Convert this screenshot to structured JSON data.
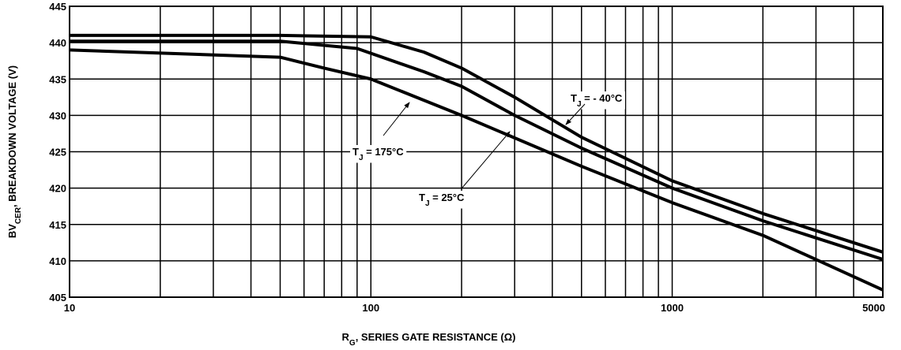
{
  "chart_data": {
    "type": "line",
    "xlabel": {
      "text": "R",
      "sub": "G",
      "rest": ", SERIES GATE RESISTANCE (Ω)"
    },
    "ylabel": {
      "text": "BV",
      "sub": "CER",
      "rest": ", BREAKDOWN VOLTAGE (V)"
    },
    "xscale": "log",
    "xlim": [
      10,
      5000
    ],
    "ylim": [
      405,
      445
    ],
    "xticks": [
      10,
      100,
      1000,
      5000
    ],
    "x_minor_ticks": [
      20,
      30,
      40,
      50,
      60,
      70,
      80,
      90,
      200,
      300,
      400,
      500,
      600,
      700,
      800,
      900,
      2000,
      3000,
      4000
    ],
    "yticks": [
      405,
      410,
      415,
      420,
      425,
      430,
      435,
      440,
      445
    ],
    "grid": true,
    "series": [
      {
        "name": {
          "text": "T",
          "sub": "J",
          "rest": " = - 40°C"
        },
        "color": "#000000",
        "x": [
          10,
          50,
          100,
          150,
          200,
          300,
          500,
          1000,
          2000,
          5000
        ],
        "values": [
          441,
          441,
          440.8,
          438.7,
          436.5,
          432.5,
          427,
          421,
          416.5,
          411.2
        ]
      },
      {
        "name": {
          "text": "T",
          "sub": "J",
          "rest": " = 25°C"
        },
        "color": "#000000",
        "x": [
          10,
          50,
          90,
          150,
          200,
          300,
          500,
          1000,
          2000,
          5000
        ],
        "values": [
          440.2,
          440.2,
          439.2,
          436,
          434,
          430,
          425.5,
          420,
          415.5,
          410.2
        ]
      },
      {
        "name": {
          "text": "T",
          "sub": "J",
          "rest": " = 175°C"
        },
        "color": "#000000",
        "x": [
          10,
          50,
          70,
          100,
          200,
          500,
          1000,
          2000,
          5000
        ],
        "values": [
          439,
          438,
          436.5,
          435,
          430,
          423,
          418,
          413.5,
          406
        ]
      }
    ]
  }
}
